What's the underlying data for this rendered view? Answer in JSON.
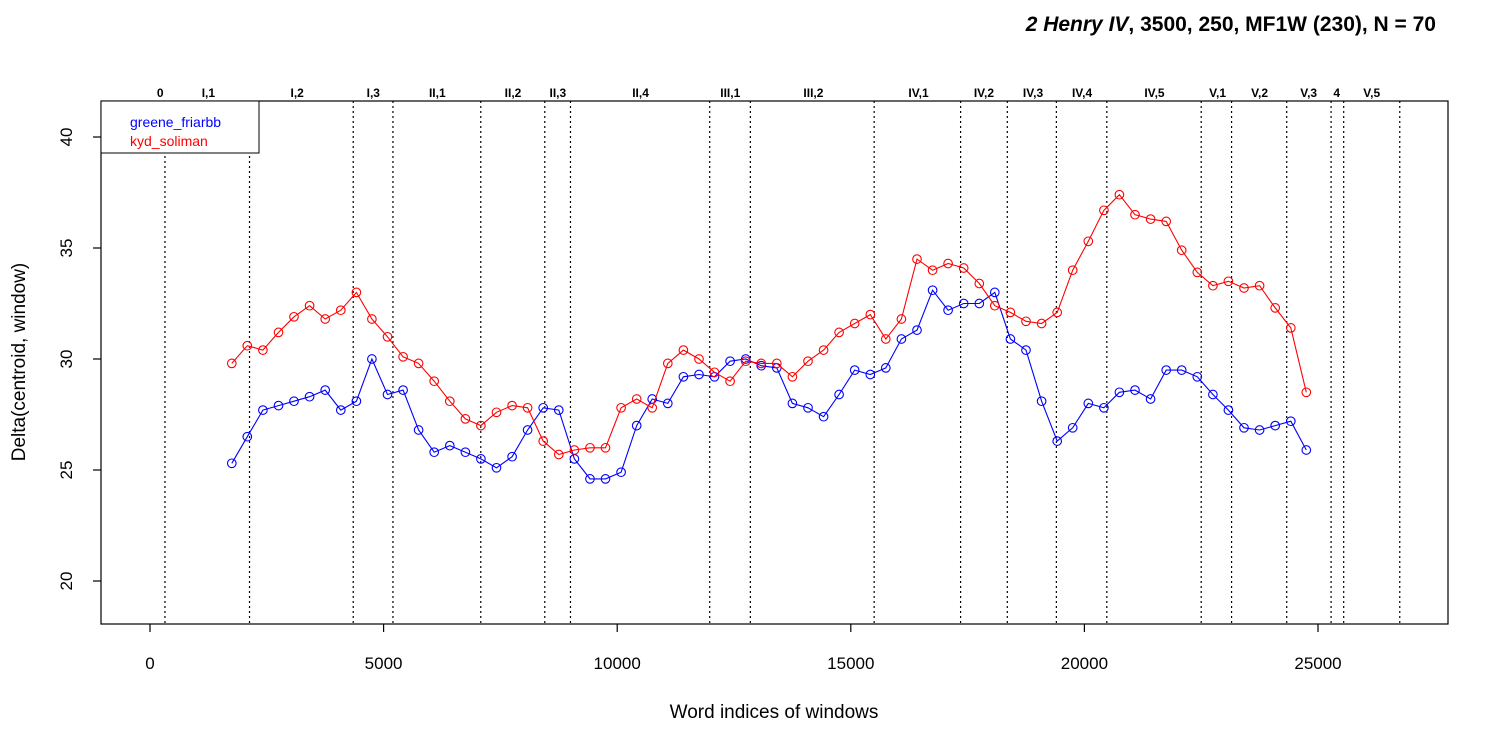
{
  "chart_data": {
    "type": "line",
    "title_italic": "2 Henry IV",
    "title_rest": ", 3500, 250, MF1W (230), N = 70",
    "xlabel": "Word indices of windows",
    "ylabel": "Delta(centroid, window)",
    "xlim": [
      -1000,
      27000
    ],
    "ylim": [
      18,
      41.5
    ],
    "x_ticks": [
      0,
      5000,
      10000,
      15000,
      20000,
      25000
    ],
    "x_tick_labels": [
      "0",
      "5000",
      "10000",
      "15000",
      "20000",
      "25000"
    ],
    "y_ticks": [
      20,
      25,
      30,
      35,
      40
    ],
    "y_tick_labels": [
      "20",
      "25",
      "30",
      "35",
      "40"
    ],
    "grid": false,
    "legend_position": "top-left",
    "scene_boundaries": [
      320,
      2130,
      4350,
      5200,
      7080,
      8450,
      9000,
      11980,
      12850,
      15500,
      17350,
      18350,
      19400,
      20480,
      22500,
      23150,
      24330,
      25280,
      25550,
      26750
    ],
    "scenes": [
      {
        "label": "0",
        "x": 220
      },
      {
        "label": "I,1",
        "x": 1250
      },
      {
        "label": "I,2",
        "x": 3150
      },
      {
        "label": "I,3",
        "x": 4780
      },
      {
        "label": "II,1",
        "x": 6150
      },
      {
        "label": "II,2",
        "x": 7770
      },
      {
        "label": "II,3",
        "x": 8730
      },
      {
        "label": "II,4",
        "x": 10500
      },
      {
        "label": "III,1",
        "x": 12420
      },
      {
        "label": "III,2",
        "x": 14200
      },
      {
        "label": "IV,1",
        "x": 16450
      },
      {
        "label": "IV,2",
        "x": 17850
      },
      {
        "label": "IV,3",
        "x": 18900
      },
      {
        "label": "IV,4",
        "x": 19950
      },
      {
        "label": "IV,5",
        "x": 21500
      },
      {
        "label": "V,1",
        "x": 22850
      },
      {
        "label": "V,2",
        "x": 23750
      },
      {
        "label": "V,3",
        "x": 24800
      },
      {
        "label": "4",
        "x": 25400
      },
      {
        "label": "V,5",
        "x": 26150
      }
    ],
    "x": [
      1750,
      2083,
      2417,
      2750,
      3083,
      3417,
      3750,
      4083,
      4417,
      4750,
      5083,
      5417,
      5750,
      6083,
      6417,
      6750,
      7083,
      7417,
      7750,
      8083,
      8417,
      8750,
      9083,
      9417,
      9750,
      10083,
      10417,
      10750,
      11083,
      11417,
      11750,
      12083,
      12417,
      12750,
      13083,
      13417,
      13750,
      14083,
      14417,
      14750,
      15083,
      15417,
      15750,
      16083,
      16417,
      16750,
      17083,
      17417,
      17750,
      18083,
      18417,
      18750,
      19083,
      19417,
      19750,
      20083,
      20417,
      20750,
      21083,
      21417,
      21750,
      22083,
      22417,
      22750,
      23083,
      23417,
      23750,
      24083,
      24417,
      24750
    ],
    "series": [
      {
        "name": "greene_friarbb",
        "color": "#0000ff",
        "values": [
          25.3,
          26.5,
          27.7,
          27.9,
          28.1,
          28.3,
          28.6,
          27.7,
          28.1,
          30.0,
          28.4,
          28.6,
          26.8,
          25.8,
          26.1,
          25.8,
          25.5,
          25.1,
          25.6,
          26.8,
          27.8,
          27.7,
          25.5,
          24.6,
          24.6,
          24.9,
          27.0,
          28.2,
          28.0,
          29.2,
          29.3,
          29.2,
          29.9,
          30.0,
          29.7,
          29.6,
          28.0,
          27.8,
          27.4,
          28.4,
          29.5,
          29.3,
          29.6,
          30.9,
          31.3,
          33.1,
          32.2,
          32.5,
          32.5,
          33.0,
          30.9,
          30.4,
          28.1,
          26.3,
          26.9,
          28.0,
          27.8,
          28.5,
          28.6,
          28.2,
          29.5,
          29.5,
          29.2,
          28.4,
          27.7,
          26.9,
          26.8,
          27.0,
          27.2,
          25.9
        ]
      },
      {
        "name": "kyd_soliman",
        "color": "#ff0000",
        "values": [
          29.8,
          30.6,
          30.4,
          31.2,
          31.9,
          32.4,
          31.8,
          32.2,
          33.0,
          31.8,
          31.0,
          30.1,
          29.8,
          29.0,
          28.1,
          27.3,
          27.0,
          27.6,
          27.9,
          27.8,
          26.3,
          25.7,
          25.9,
          26.0,
          26.0,
          27.8,
          28.2,
          27.8,
          29.8,
          30.4,
          30.0,
          29.4,
          29.0,
          29.9,
          29.8,
          29.8,
          29.2,
          29.9,
          30.4,
          31.2,
          31.6,
          32.0,
          30.9,
          31.8,
          34.5,
          34.0,
          34.3,
          34.1,
          33.4,
          32.4,
          32.1,
          31.7,
          31.6,
          32.1,
          34.0,
          35.3,
          36.7,
          37.4,
          36.5,
          36.3,
          36.2,
          34.9,
          33.9,
          33.3,
          33.5,
          33.2,
          33.3,
          32.3,
          31.4,
          28.5
        ]
      }
    ]
  }
}
